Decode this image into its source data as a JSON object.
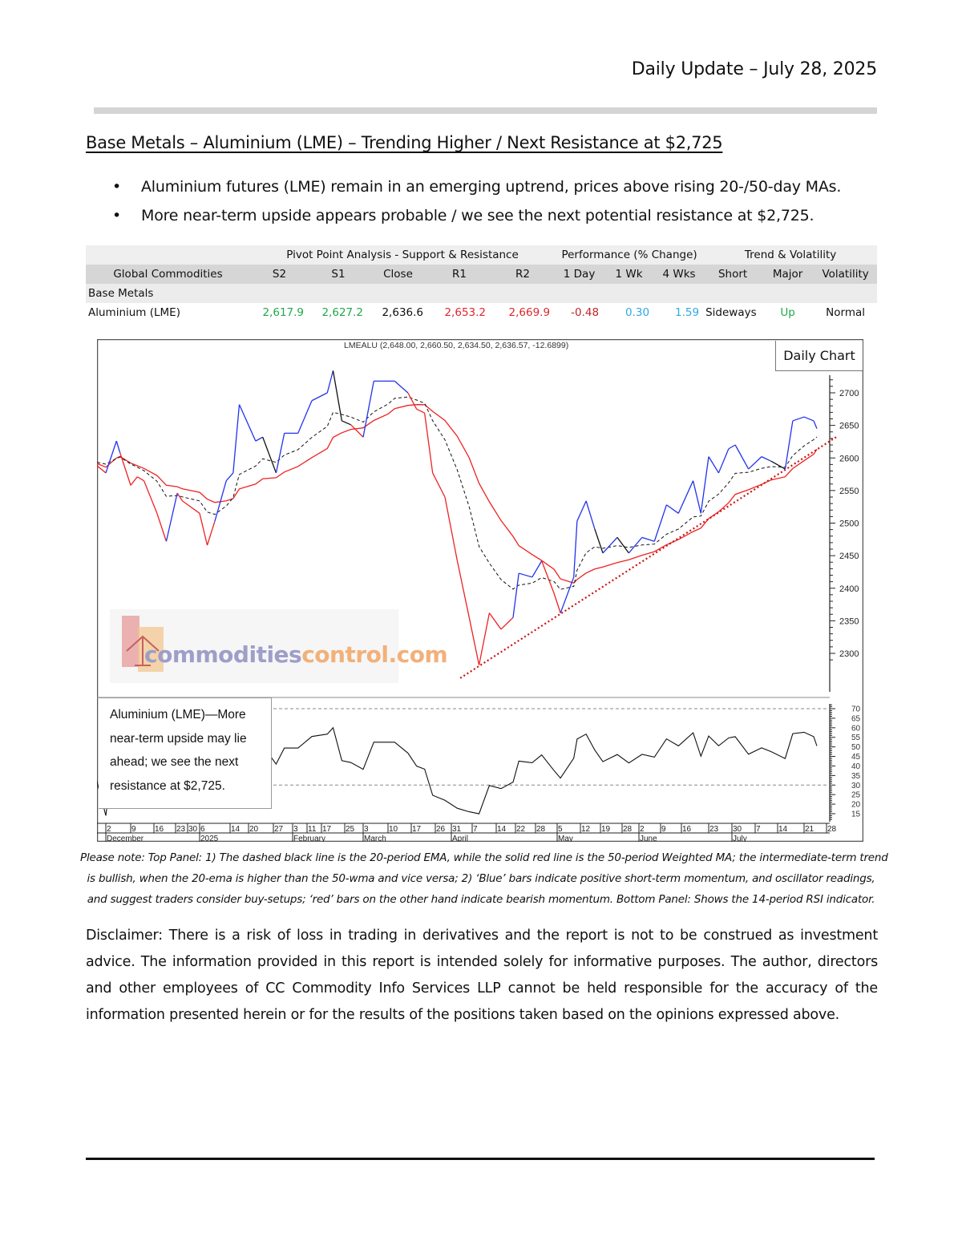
{
  "header": {
    "date_line": "Daily Update – July 28, 2025"
  },
  "title": "Base Metals – Aluminium (LME) – Trending Higher / Next Resistance at $2,725",
  "bullets": [
    "Aluminium futures (LME) remain in an emerging uptrend, prices above rising 20-/50-day MAs.",
    "More near-term upside appears probable / we see the next potential resistance at $2,725."
  ],
  "table": {
    "group_headers": [
      "Pivot Point Analysis - Support & Resistance",
      "Performance (% Change)",
      "Trend & Volatility"
    ],
    "columns": [
      "Global Commodities",
      "S2",
      "S1",
      "Close",
      "R1",
      "R2",
      "1 Day",
      "1 Wk",
      "4 Wks",
      "Short",
      "Major",
      "Volatility"
    ],
    "section": "Base Metals",
    "row": {
      "name": "Aluminium (LME)",
      "values": [
        {
          "text": "2,617.9",
          "color": "#22a84a"
        },
        {
          "text": "2,627.2",
          "color": "#22a84a"
        },
        {
          "text": "2,636.6",
          "color": "#111111"
        },
        {
          "text": "2,653.2",
          "color": "#e0262b"
        },
        {
          "text": "2,669.9",
          "color": "#e0262b"
        },
        {
          "text": "-0.48",
          "color": "#c0262b"
        },
        {
          "text": "0.30",
          "color": "#2fa8e0"
        },
        {
          "text": "1.59",
          "color": "#2fa8e0"
        },
        {
          "text": "Sideways",
          "color": "#111111"
        },
        {
          "text": "Up",
          "color": "#22a84a"
        },
        {
          "text": "Normal",
          "color": "#111111"
        }
      ]
    }
  },
  "chart_data": {
    "type": "line",
    "title": "LMEALU (2,648.00, 2,660.50, 2,634.50, 2,636.57, -12.6899)",
    "badge": "Daily Chart",
    "price_axis": {
      "ticks": [
        2300,
        2350,
        2400,
        2450,
        2500,
        2550,
        2600,
        2650,
        2700
      ],
      "range": [
        2300,
        2700
      ]
    },
    "rsi_axis": {
      "ticks": [
        15,
        20,
        25,
        30,
        35,
        40,
        45,
        50,
        55,
        60,
        65,
        70
      ],
      "levels": [
        70,
        30
      ]
    },
    "date_ticks": [
      {
        "date": "2024-12-02",
        "label": "2"
      },
      {
        "date": "2024-12-09",
        "label": "9"
      },
      {
        "date": "2024-12-16",
        "label": "16"
      },
      {
        "date": "2024-12-23",
        "label": "23"
      },
      {
        "date": "2024-12-30",
        "label": "30"
      },
      {
        "date": "2025-01-06",
        "label": "6"
      },
      {
        "date": "2025-01-14",
        "label": "14"
      },
      {
        "date": "2025-01-20",
        "label": "20"
      },
      {
        "date": "2025-01-27",
        "label": "27"
      },
      {
        "date": "2025-02-03",
        "label": "3"
      },
      {
        "date": "2025-02-11",
        "label": "11"
      },
      {
        "date": "2025-02-17",
        "label": "17"
      },
      {
        "date": "2025-02-25",
        "label": "25"
      },
      {
        "date": "2025-03-03",
        "label": "3"
      },
      {
        "date": "2025-03-10",
        "label": "10"
      },
      {
        "date": "2025-03-17",
        "label": "17"
      },
      {
        "date": "2025-03-26",
        "label": "26"
      },
      {
        "date": "2025-03-31",
        "label": "31"
      },
      {
        "date": "2025-04-07",
        "label": "7"
      },
      {
        "date": "2025-04-14",
        "label": "14"
      },
      {
        "date": "2025-04-22",
        "label": "22"
      },
      {
        "date": "2025-04-28",
        "label": "28"
      },
      {
        "date": "2025-05-05",
        "label": "5"
      },
      {
        "date": "2025-05-12",
        "label": "12"
      },
      {
        "date": "2025-05-19",
        "label": "19"
      },
      {
        "date": "2025-05-28",
        "label": "28"
      },
      {
        "date": "2025-06-02",
        "label": "2"
      },
      {
        "date": "2025-06-09",
        "label": "9"
      },
      {
        "date": "2025-06-16",
        "label": "16"
      },
      {
        "date": "2025-06-23",
        "label": "23"
      },
      {
        "date": "2025-06-30",
        "label": "30"
      },
      {
        "date": "2025-07-07",
        "label": "7"
      },
      {
        "date": "2025-07-14",
        "label": "14"
      },
      {
        "date": "2025-07-21",
        "label": "21"
      },
      {
        "date": "2025-07-28",
        "label": "28"
      }
    ],
    "month_labels": [
      {
        "date": "2024-12-02",
        "label": "December"
      },
      {
        "date": "2025-01-06",
        "label": "2025"
      },
      {
        "date": "2025-02-03",
        "label": "February"
      },
      {
        "date": "2025-03-03",
        "label": "March"
      },
      {
        "date": "2025-03-31",
        "label": "April"
      },
      {
        "date": "2025-05-05",
        "label": "May"
      },
      {
        "date": "2025-06-02",
        "label": "June"
      },
      {
        "date": "2025-06-30",
        "label": "July"
      }
    ],
    "close": [
      [
        "2024-11-28",
        2595
      ],
      [
        "2024-12-02",
        2577
      ],
      [
        "2024-12-05",
        2626
      ],
      [
        "2024-12-06",
        2608
      ],
      [
        "2024-12-09",
        2558
      ],
      [
        "2024-12-11",
        2571
      ],
      [
        "2024-12-13",
        2565
      ],
      [
        "2024-12-17",
        2515
      ],
      [
        "2024-12-20",
        2472
      ],
      [
        "2024-12-24",
        2546
      ],
      [
        "2024-12-27",
        2534
      ],
      [
        "2025-01-06",
        2515
      ],
      [
        "2025-01-08",
        2466
      ],
      [
        "2025-01-10",
        2503
      ],
      [
        "2025-01-13",
        2565
      ],
      [
        "2025-01-15",
        2577
      ],
      [
        "2025-01-17",
        2682
      ],
      [
        "2025-01-22",
        2626
      ],
      [
        "2025-01-24",
        2632
      ],
      [
        "2025-01-28",
        2577
      ],
      [
        "2025-01-31",
        2638
      ],
      [
        "2025-02-06",
        2638
      ],
      [
        "2025-02-13",
        2688
      ],
      [
        "2025-02-19",
        2700
      ],
      [
        "2025-02-21",
        2734
      ],
      [
        "2025-02-24",
        2657
      ],
      [
        "2025-02-27",
        2651
      ],
      [
        "2025-03-03",
        2632
      ],
      [
        "2025-03-06",
        2718
      ],
      [
        "2025-03-10",
        2718
      ],
      [
        "2025-03-12",
        2718
      ],
      [
        "2025-03-16",
        2700
      ],
      [
        "2025-03-19",
        2675
      ],
      [
        "2025-03-22",
        2669
      ],
      [
        "2025-03-25",
        2577
      ],
      [
        "2025-03-29",
        2540
      ],
      [
        "2025-04-02",
        2442
      ],
      [
        "2025-04-06",
        2355
      ],
      [
        "2025-04-09",
        2282
      ],
      [
        "2025-04-12",
        2362
      ],
      [
        "2025-04-16",
        2337
      ],
      [
        "2025-04-21",
        2355
      ],
      [
        "2025-04-23",
        2423
      ],
      [
        "2025-04-27",
        2417
      ],
      [
        "2025-04-30",
        2442
      ],
      [
        "2025-05-04",
        2392
      ],
      [
        "2025-05-06",
        2362
      ],
      [
        "2025-05-10",
        2417
      ],
      [
        "2025-05-11",
        2503
      ],
      [
        "2025-05-14",
        2534
      ],
      [
        "2025-05-17",
        2491
      ],
      [
        "2025-05-20",
        2454
      ],
      [
        "2025-05-26",
        2478
      ],
      [
        "2025-05-30",
        2454
      ],
      [
        "2025-06-03",
        2478
      ],
      [
        "2025-06-07",
        2472
      ],
      [
        "2025-06-11",
        2528
      ],
      [
        "2025-06-15",
        2515
      ],
      [
        "2025-06-19",
        2565
      ],
      [
        "2025-06-21",
        2515
      ],
      [
        "2025-06-23",
        2602
      ],
      [
        "2025-06-26",
        2577
      ],
      [
        "2025-06-29",
        2614
      ],
      [
        "2025-07-01",
        2620
      ],
      [
        "2025-07-05",
        2583
      ],
      [
        "2025-07-09",
        2602
      ],
      [
        "2025-07-12",
        2595
      ],
      [
        "2025-07-16",
        2583
      ],
      [
        "2025-07-18",
        2657
      ],
      [
        "2025-07-21",
        2663
      ],
      [
        "2025-07-24",
        2657
      ],
      [
        "2025-07-25",
        2645
      ]
    ],
    "trendline": [
      [
        "2025-04-03",
        2262
      ],
      [
        "2025-07-31",
        2632
      ]
    ],
    "series_colors": {
      "ema20": "#111111",
      "wma50": "#ee2222",
      "up": "#2233ee",
      "down": "#ee2222",
      "neutral": "#111111",
      "trendline": "#cc1111"
    },
    "annotation": "Aluminium (LME)—More near-term upside may lie ahead; we see the next resistance at $2,725.",
    "watermark": "commoditiescontrol.com"
  },
  "notes": [
    "Please note: Top Panel: 1) The dashed black line is the 20-period EMA, while the solid red line is the 50-period Weighted MA; the intermediate-term trend",
    "is bullish, when the 20-ema is higher than the 50-wma and vice versa; 2)   ‘Blue’    bars indicate positive short-term momentum, and oscillator readings,",
    "and suggest traders consider buy-setups;   ‘red’    bars on the other hand indicate bearish momentum. Bottom Panel: Shows the 14-period RSI indicator."
  ],
  "disclaimer": "Disclaimer: There is a risk of loss in trading in derivatives and the report is not to be construed as investment advice. The information provided in this report is intended solely for informative purposes. The author, directors and other employees of CC Commodity Info Services LLP cannot be held responsible for the accuracy of the information presented herein or for the results of the positions taken based on the opinions expressed above."
}
